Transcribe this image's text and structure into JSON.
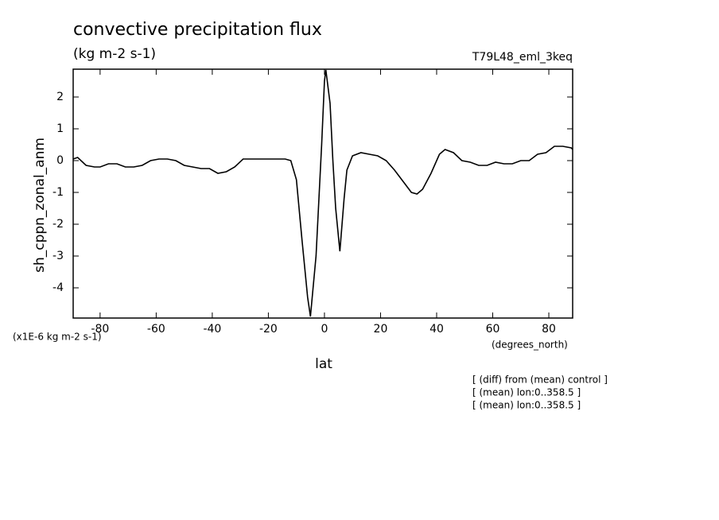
{
  "chart_data": {
    "type": "line",
    "title": "convective precipitation flux",
    "subtitle": "(kg m-2 s-1)",
    "run_label": "T79L48_eml_3keq",
    "y_label": "sh_cppn_zonal_anm",
    "y_units": "(x1E-6 kg m-2 s-1)",
    "x_units": "(degrees_north)",
    "x_label": "lat",
    "notes": [
      "[ (diff) from (mean) control ]",
      "[ (mean) lon:0..358.5 ]",
      "[ (mean) lon:0..358.5 ]"
    ],
    "x": [
      -89.6,
      -88,
      -85,
      -82,
      -80,
      -77,
      -74,
      -71,
      -68,
      -65,
      -62,
      -59,
      -56,
      -53,
      -50,
      -47,
      -44,
      -41,
      -38,
      -35,
      -32,
      -29,
      -26,
      -23,
      -20,
      -17,
      -14,
      -12,
      -10,
      -8,
      -6,
      -5,
      -3,
      -1,
      0,
      0.5,
      2,
      3,
      4,
      5.5,
      7,
      8,
      10,
      13,
      16,
      19,
      22,
      25,
      28,
      31,
      33,
      35,
      38,
      41,
      43,
      46,
      49,
      52,
      55,
      58,
      61,
      64,
      67,
      70,
      73,
      76,
      79,
      82,
      85,
      88,
      88.5
    ],
    "series": [
      {
        "name": "sh_cppn_zonal_anm",
        "color": "#000000",
        "values": [
          0.05,
          0.1,
          -0.15,
          -0.2,
          -0.2,
          -0.1,
          -0.1,
          -0.2,
          -0.2,
          -0.15,
          0.0,
          0.05,
          0.05,
          0.0,
          -0.15,
          -0.2,
          -0.25,
          -0.25,
          -0.4,
          -0.35,
          -0.2,
          0.05,
          0.05,
          0.05,
          0.05,
          0.05,
          0.05,
          0.0,
          -0.6,
          -2.5,
          -4.3,
          -4.9,
          -3.0,
          0.5,
          2.5,
          2.85,
          1.8,
          0.0,
          -1.5,
          -2.85,
          -1.2,
          -0.3,
          0.15,
          0.25,
          0.2,
          0.15,
          0.0,
          -0.3,
          -0.65,
          -1.0,
          -1.05,
          -0.9,
          -0.4,
          0.2,
          0.35,
          0.25,
          0.0,
          -0.05,
          -0.15,
          -0.15,
          -0.05,
          -0.1,
          -0.1,
          0.0,
          0.0,
          0.2,
          0.25,
          0.45,
          0.45,
          0.4,
          0.35
        ]
      }
    ],
    "xlim": [
      -89.6,
      88.5
    ],
    "xticks": [
      -80,
      -60,
      -40,
      -20,
      0,
      20,
      40,
      60,
      80
    ],
    "ylim": [
      -4.95,
      2.875
    ],
    "yticks": [
      -4,
      -3,
      -2,
      -1,
      0,
      1,
      2
    ]
  }
}
